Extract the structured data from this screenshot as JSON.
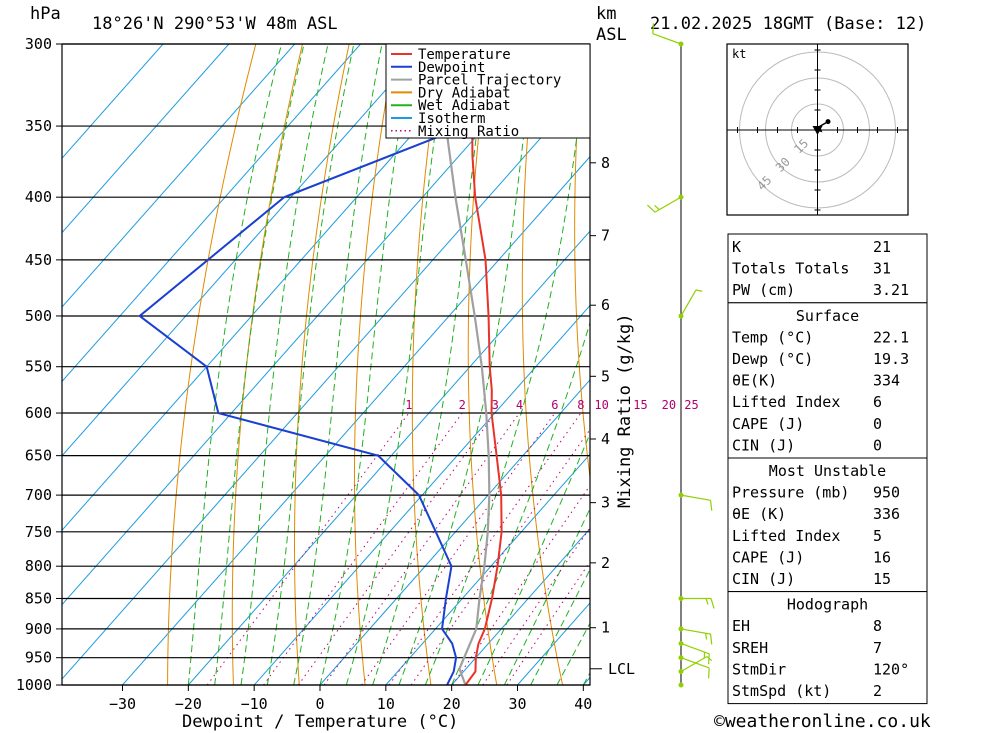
{
  "header": {
    "location": "18°26'N  290°53'W  48m  ASL",
    "datetime": "21.02.2025  18GMT  (Base: 12)",
    "hpa_label": "hPa",
    "km_label": "km",
    "asl_label": "ASL"
  },
  "axes": {
    "xlabel": "Dewpoint / Temperature (°C)",
    "mixing_label": "Mixing Ratio (g/kg)",
    "lcl_label": "LCL"
  },
  "watermark": "©weatheronline.co.uk",
  "colors": {
    "temperature": "#e8332a",
    "dewpoint": "#1a3fd1",
    "parcel": "#a0a0a0",
    "dry_adiabat": "#e08a00",
    "wet_adiabat": "#22b022",
    "isotherm": "#1e9be0",
    "mixing_ratio": "#c0007a",
    "wind": "#90d000"
  },
  "legend": [
    {
      "label": "Temperature",
      "style": "temperature",
      "line": "solid"
    },
    {
      "label": "Dewpoint",
      "style": "dewpoint",
      "line": "solid"
    },
    {
      "label": "Parcel Trajectory",
      "style": "parcel",
      "line": "solid"
    },
    {
      "label": "Dry Adiabat",
      "style": "dry_adiabat",
      "line": "solid"
    },
    {
      "label": "Wet Adiabat",
      "style": "wet_adiabat",
      "line": "solid"
    },
    {
      "label": "Isotherm",
      "style": "isotherm",
      "line": "solid"
    },
    {
      "label": "Mixing Ratio",
      "style": "mixing_ratio",
      "line": "dotted"
    }
  ],
  "hodograph": {
    "unit": "kt",
    "rings": [
      "15",
      "30",
      "45"
    ]
  },
  "indices": {
    "block1": [
      {
        "label": "K",
        "value": "21"
      },
      {
        "label": "Totals Totals",
        "value": "31"
      },
      {
        "label": "PW (cm)",
        "value": "3.21"
      }
    ],
    "surface": {
      "title": "Surface",
      "rows": [
        {
          "label": "Temp (°C)",
          "value": "22.1"
        },
        {
          "label": "Dewp (°C)",
          "value": "19.3"
        },
        {
          "label": "θE(K)",
          "value": "334"
        },
        {
          "label": "Lifted Index",
          "value": "6"
        },
        {
          "label": "CAPE (J)",
          "value": "0"
        },
        {
          "label": "CIN (J)",
          "value": "0"
        }
      ]
    },
    "most_unstable": {
      "title": "Most Unstable",
      "rows": [
        {
          "label": "Pressure (mb)",
          "value": "950"
        },
        {
          "label": "θE (K)",
          "value": "336"
        },
        {
          "label": "Lifted Index",
          "value": "5"
        },
        {
          "label": "CAPE (J)",
          "value": "16"
        },
        {
          "label": "CIN (J)",
          "value": "15"
        }
      ]
    },
    "hodograph": {
      "title": "Hodograph",
      "rows": [
        {
          "label": "EH",
          "value": "8"
        },
        {
          "label": "SREH",
          "value": "7"
        },
        {
          "label": "StmDir",
          "value": "120°"
        },
        {
          "label": "StmSpd (kt)",
          "value": "2"
        }
      ]
    }
  },
  "chart_data": {
    "type": "line",
    "title": "",
    "xlabel": "Dewpoint / Temperature (°C)",
    "ylabel": "hPa",
    "pressure_levels": [
      300,
      350,
      400,
      450,
      500,
      550,
      600,
      650,
      700,
      750,
      800,
      850,
      900,
      950,
      1000
    ],
    "x_ticks": [
      -30,
      -20,
      -10,
      0,
      10,
      20,
      30,
      40
    ],
    "x_tick_labels": [
      "−30",
      "−20",
      "−10",
      "0",
      "10",
      "20",
      "30",
      "40"
    ],
    "km_ticks": [
      {
        "km": 1,
        "p": 898
      },
      {
        "km": 2,
        "p": 795
      },
      {
        "km": 3,
        "p": 710
      },
      {
        "km": 4,
        "p": 630
      },
      {
        "km": 5,
        "p": 560
      },
      {
        "km": 6,
        "p": 490
      },
      {
        "km": 7,
        "p": 430
      },
      {
        "km": 8,
        "p": 375
      }
    ],
    "lcl_pressure": 970,
    "mixing_ratio_labels": [
      "1",
      "2",
      "3",
      "4",
      "6",
      "8",
      "10",
      "15",
      "20",
      "25"
    ],
    "series": [
      {
        "name": "Temperature",
        "points": [
          [
            1000,
            22.1
          ],
          [
            975,
            21.8
          ],
          [
            950,
            20.0
          ],
          [
            925,
            18.5
          ],
          [
            900,
            17.5
          ],
          [
            850,
            14.5
          ],
          [
            800,
            11.0
          ],
          [
            750,
            7.0
          ],
          [
            700,
            2.0
          ],
          [
            650,
            -4.0
          ],
          [
            600,
            -10.5
          ],
          [
            575,
            -13.5
          ],
          [
            550,
            -17.0
          ],
          [
            500,
            -24.0
          ],
          [
            450,
            -32.0
          ],
          [
            400,
            -42.0
          ],
          [
            370,
            -48.0
          ],
          [
            350,
            -52.0
          ],
          [
            300,
            -53.5
          ]
        ]
      },
      {
        "name": "Dewpoint",
        "points": [
          [
            1000,
            19.3
          ],
          [
            975,
            18.5
          ],
          [
            950,
            17.0
          ],
          [
            925,
            14.5
          ],
          [
            900,
            11.0
          ],
          [
            850,
            7.5
          ],
          [
            800,
            4.0
          ],
          [
            750,
            -3.0
          ],
          [
            700,
            -10.5
          ],
          [
            650,
            -22.0
          ],
          [
            600,
            -52.0
          ],
          [
            550,
            -60.0
          ],
          [
            500,
            -77.0
          ],
          [
            400,
            -71.0
          ],
          [
            350,
            -53.0
          ],
          [
            300,
            -45.0
          ]
        ]
      },
      {
        "name": "Parcel Trajectory",
        "points": [
          [
            1000,
            22.1
          ],
          [
            970,
            19.0
          ],
          [
            900,
            16.2
          ],
          [
            850,
            12.6
          ],
          [
            800,
            9.0
          ],
          [
            750,
            4.9
          ],
          [
            700,
            0.2
          ],
          [
            650,
            -5.2
          ],
          [
            600,
            -11.3
          ],
          [
            550,
            -18.2
          ],
          [
            500,
            -26.1
          ],
          [
            450,
            -35.0
          ],
          [
            400,
            -45.0
          ],
          [
            350,
            -56.0
          ],
          [
            300,
            -68.0
          ]
        ]
      }
    ],
    "wind_barbs": [
      {
        "p": 300,
        "dir_deg": 290,
        "speed_kt": 10
      },
      {
        "p": 400,
        "dir_deg": 240,
        "speed_kt": 15
      },
      {
        "p": 500,
        "dir_deg": 30,
        "speed_kt": 5
      },
      {
        "p": 700,
        "dir_deg": 100,
        "speed_kt": 10
      },
      {
        "p": 850,
        "dir_deg": 90,
        "speed_kt": 15
      },
      {
        "p": 900,
        "dir_deg": 100,
        "speed_kt": 15
      },
      {
        "p": 925,
        "dir_deg": 110,
        "speed_kt": 15
      },
      {
        "p": 950,
        "dir_deg": 110,
        "speed_kt": 10
      },
      {
        "p": 975,
        "dir_deg": 60,
        "speed_kt": 5
      },
      {
        "p": 1000,
        "dir_deg": 0,
        "speed_kt": 0
      }
    ],
    "hodograph_path": [
      [
        0,
        0
      ],
      [
        1.2,
        -0.4
      ],
      [
        0.8,
        0.6
      ],
      [
        -0.6,
        0.3
      ],
      [
        0.4,
        1.0
      ],
      [
        3.5,
        2.8
      ]
    ]
  }
}
